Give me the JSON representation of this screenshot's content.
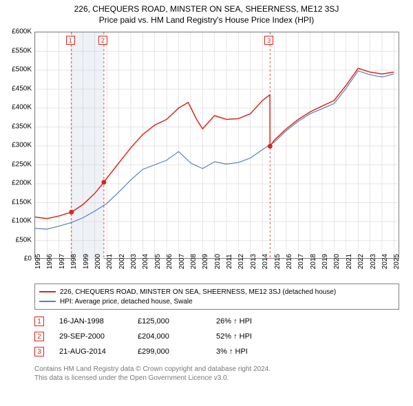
{
  "title": {
    "line1": "226, CHEQUERS ROAD, MINSTER ON SEA, SHEERNESS, ME12 3SJ",
    "line2": "Price paid vs. HM Land Registry's House Price Index (HPI)"
  },
  "chart": {
    "type": "line",
    "background_color": "#ffffff",
    "border_color": "#808080",
    "grid_color": "#cccccc",
    "shaded_band": {
      "x_from": 1998.04,
      "x_to": 2000.75,
      "fill": "#eef1f6"
    },
    "xlim": [
      1995,
      2025.5
    ],
    "ylim": [
      0,
      600000
    ],
    "y_ticks": [
      0,
      50000,
      100000,
      150000,
      200000,
      250000,
      300000,
      350000,
      400000,
      450000,
      500000,
      550000,
      600000
    ],
    "y_tick_labels": [
      "£0",
      "£50K",
      "£100K",
      "£150K",
      "£200K",
      "£250K",
      "£300K",
      "£350K",
      "£400K",
      "£450K",
      "£500K",
      "£550K",
      "£600K"
    ],
    "x_ticks": [
      1995,
      1996,
      1997,
      1998,
      1999,
      2000,
      2001,
      2002,
      2003,
      2004,
      2005,
      2006,
      2007,
      2008,
      2009,
      2010,
      2011,
      2012,
      2013,
      2014,
      2015,
      2016,
      2017,
      2018,
      2019,
      2020,
      2021,
      2022,
      2023,
      2024,
      2025
    ],
    "series": [
      {
        "name": "property_price",
        "label": "226, CHEQUERS ROAD, MINSTER ON SEA, SHEERNESS, ME12 3SJ (detached house)",
        "color": "#d9261c",
        "line_width": 1.5,
        "points": [
          [
            1995,
            112000
          ],
          [
            1996,
            108000
          ],
          [
            1997,
            115000
          ],
          [
            1998.04,
            125000
          ],
          [
            1999,
            145000
          ],
          [
            2000,
            175000
          ],
          [
            2000.75,
            204000
          ],
          [
            2001,
            215000
          ],
          [
            2002,
            255000
          ],
          [
            2003,
            295000
          ],
          [
            2004,
            330000
          ],
          [
            2005,
            355000
          ],
          [
            2006,
            370000
          ],
          [
            2007,
            400000
          ],
          [
            2007.8,
            415000
          ],
          [
            2008.5,
            370000
          ],
          [
            2009,
            345000
          ],
          [
            2010,
            380000
          ],
          [
            2011,
            370000
          ],
          [
            2012,
            372000
          ],
          [
            2013,
            385000
          ],
          [
            2014,
            420000
          ],
          [
            2014.63,
            435000
          ],
          [
            2014.64,
            299000
          ],
          [
            2015,
            315000
          ],
          [
            2016,
            345000
          ],
          [
            2017,
            370000
          ],
          [
            2018,
            390000
          ],
          [
            2019,
            405000
          ],
          [
            2020,
            420000
          ],
          [
            2021,
            460000
          ],
          [
            2022,
            505000
          ],
          [
            2023,
            495000
          ],
          [
            2024,
            490000
          ],
          [
            2025,
            495000
          ]
        ]
      },
      {
        "name": "hpi",
        "label": "HPI: Average price, detached house, Swale",
        "color": "#5b7fb5",
        "line_width": 1.2,
        "points": [
          [
            1995,
            82000
          ],
          [
            1996,
            80000
          ],
          [
            1997,
            88000
          ],
          [
            1998,
            97000
          ],
          [
            1999,
            110000
          ],
          [
            2000,
            128000
          ],
          [
            2001,
            148000
          ],
          [
            2002,
            178000
          ],
          [
            2003,
            210000
          ],
          [
            2004,
            238000
          ],
          [
            2005,
            250000
          ],
          [
            2006,
            262000
          ],
          [
            2007,
            285000
          ],
          [
            2008,
            255000
          ],
          [
            2009,
            240000
          ],
          [
            2010,
            258000
          ],
          [
            2011,
            252000
          ],
          [
            2012,
            256000
          ],
          [
            2013,
            268000
          ],
          [
            2014,
            290000
          ],
          [
            2015,
            310000
          ],
          [
            2016,
            340000
          ],
          [
            2017,
            365000
          ],
          [
            2018,
            385000
          ],
          [
            2019,
            398000
          ],
          [
            2020,
            412000
          ],
          [
            2021,
            452000
          ],
          [
            2022,
            498000
          ],
          [
            2023,
            488000
          ],
          [
            2024,
            482000
          ],
          [
            2025,
            490000
          ]
        ]
      }
    ],
    "markers": [
      {
        "n": "1",
        "x": 1998.04,
        "y": 125000,
        "color": "#d9261c"
      },
      {
        "n": "2",
        "x": 2000.75,
        "y": 204000,
        "color": "#d9261c"
      },
      {
        "n": "3",
        "x": 2014.64,
        "y": 299000,
        "color": "#d9261c"
      }
    ],
    "marker_lines_color": "#d9261c"
  },
  "legend": {
    "rows": [
      {
        "color": "#d9261c",
        "label": "226, CHEQUERS ROAD, MINSTER ON SEA, SHEERNESS, ME12 3SJ (detached house)"
      },
      {
        "color": "#5b7fb5",
        "label": "HPI: Average price, detached house, Swale"
      }
    ]
  },
  "marker_table": {
    "rows": [
      {
        "n": "1",
        "color": "#d9261c",
        "date": "16-JAN-1998",
        "price": "£125,000",
        "pct": "26% ↑ HPI"
      },
      {
        "n": "2",
        "color": "#d9261c",
        "date": "29-SEP-2000",
        "price": "£204,000",
        "pct": "52% ↑ HPI"
      },
      {
        "n": "3",
        "color": "#d9261c",
        "date": "21-AUG-2014",
        "price": "£299,000",
        "pct": "3% ↑ HPI"
      }
    ]
  },
  "attribution": {
    "line1": "Contains HM Land Registry data © Crown copyright and database right 2024.",
    "line2": "This data is licensed under the Open Government Licence v3.0."
  }
}
